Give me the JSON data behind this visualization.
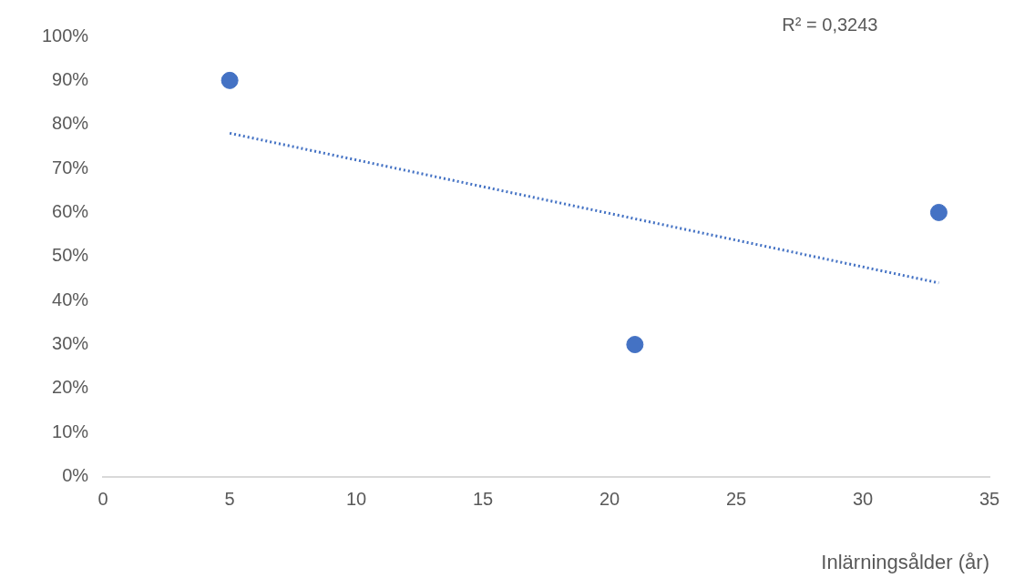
{
  "chart_data": {
    "type": "scatter",
    "xlabel": "Inlärningsålder (år)",
    "annotations": [
      "R² = 0,3243"
    ],
    "xlim": [
      0,
      35
    ],
    "xticks": [
      0,
      5,
      10,
      15,
      20,
      25,
      30,
      35
    ],
    "ylim": [
      0,
      100
    ],
    "yticks": [
      {
        "value": 0,
        "label": "0%"
      },
      {
        "value": 10,
        "label": "10%"
      },
      {
        "value": 20,
        "label": "20%"
      },
      {
        "value": 30,
        "label": "30%"
      },
      {
        "value": 40,
        "label": "40%"
      },
      {
        "value": 50,
        "label": "50%"
      },
      {
        "value": 60,
        "label": "60%"
      },
      {
        "value": 70,
        "label": "70%"
      },
      {
        "value": 80,
        "label": "80%"
      },
      {
        "value": 90,
        "label": "90%"
      },
      {
        "value": 100,
        "label": "100%"
      }
    ],
    "grid": false,
    "series": [
      {
        "type": "scatter",
        "color": "#4472c4",
        "x": [
          5,
          21,
          33
        ],
        "values": [
          90,
          30,
          60
        ],
        "marker": "circle"
      },
      {
        "type": "line",
        "color": "#4472c4",
        "x": [
          5,
          33
        ],
        "values": [
          78,
          44
        ],
        "marker": "none",
        "line_style": "dotted"
      }
    ]
  }
}
